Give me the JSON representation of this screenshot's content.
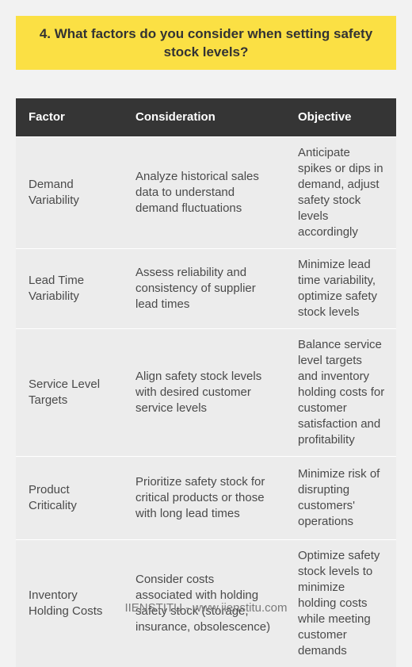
{
  "title": "4. What factors do you consider when setting safety stock levels?",
  "table": {
    "headers": [
      "Factor",
      "Consideration",
      "Objective"
    ],
    "rows": [
      {
        "factor": "Demand Variability",
        "consideration": "Analyze historical sales data to understand demand fluctuations",
        "objective": "Anticipate spikes or dips in demand, adjust safety stock levels accordingly"
      },
      {
        "factor": "Lead Time Variability",
        "consideration": "Assess reliability and consistency of supplier lead times",
        "objective": "Minimize lead time variability, optimize safety stock levels"
      },
      {
        "factor": "Service Level Targets",
        "consideration": "Align safety stock levels with desired customer service levels",
        "objective": "Balance service level targets and inventory holding costs for customer satisfaction and profitability"
      },
      {
        "factor": "Product Criticality",
        "consideration": "Prioritize safety stock for critical products or those with long lead times",
        "objective": "Minimize risk of disrupting customers' operations"
      },
      {
        "factor": "Inventory Holding Costs",
        "consideration": "Consider costs associated with holding safety stock (storage, insurance, obsolescence)",
        "objective": "Optimize safety stock levels to minimize holding costs while meeting customer demands"
      }
    ]
  },
  "footer": "IIENSTITU - www.iienstitu.com",
  "colors": {
    "title_background": "#fbe044",
    "header_background": "#353535",
    "row_background": "#ececec",
    "page_background": "#f2f2f2"
  }
}
